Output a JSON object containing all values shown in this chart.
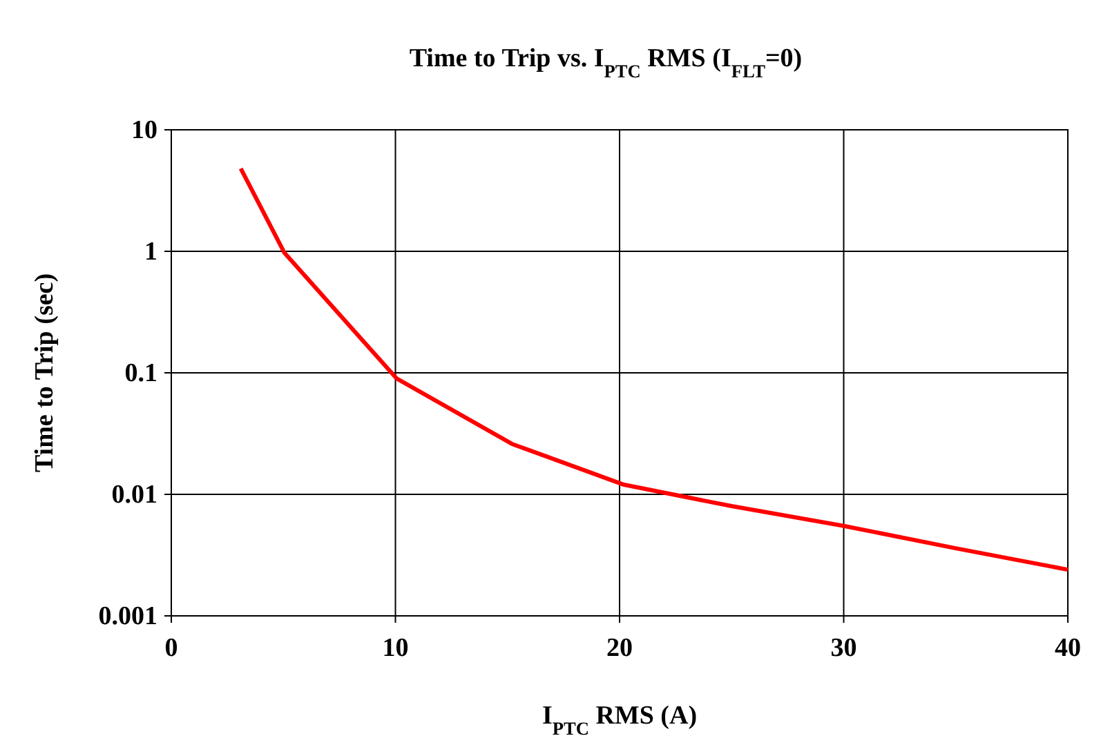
{
  "chart_data": {
    "type": "line",
    "title": "Time to Trip vs. I$_{PTC}$ RMS (I$_{FLT}$=0)",
    "xlabel": "I$_{PTC}$ RMS (A)",
    "ylabel": "Time to Trip (sec)",
    "x": [
      3.1,
      5.05,
      10.05,
      15.2,
      20.2,
      25,
      30,
      35,
      40
    ],
    "series": [
      {
        "color": "#ff0000",
        "values": [
          4.8,
          0.97,
          0.09,
          0.026,
          0.012,
          0.008,
          0.0055,
          0.0036,
          0.0024
        ]
      }
    ],
    "xlim": [
      0,
      40
    ],
    "xticks": [
      0,
      10,
      20,
      30,
      40
    ],
    "ylim": [
      0.001,
      10
    ],
    "yticks": [
      0.001,
      0.01,
      0.1,
      1,
      10
    ],
    "log": "y",
    "grid": true,
    "marker": "none",
    "line_style": "solid"
  }
}
